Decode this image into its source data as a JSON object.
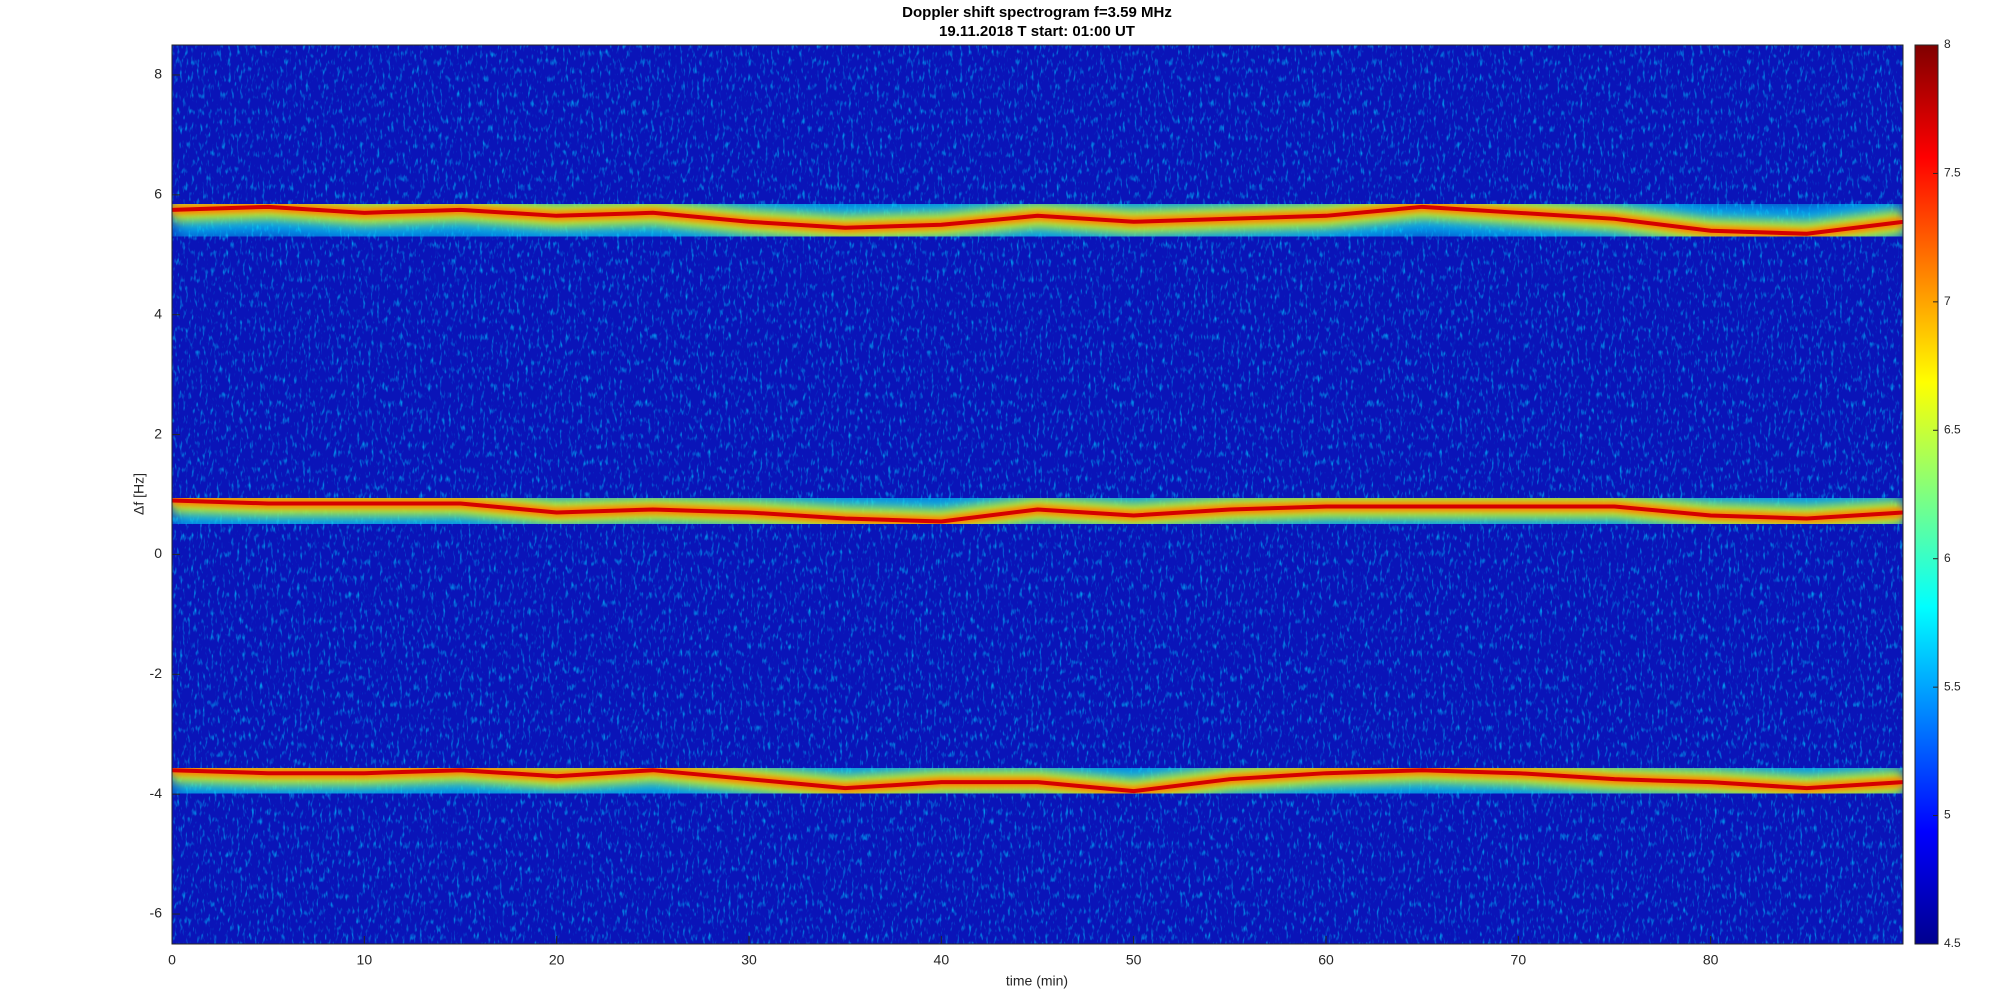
{
  "chart_data": {
    "type": "spectrogram",
    "title": "Doppler shift spectrogram f=3.59 MHz",
    "subtitle": "19.11.2018   T start: 01:00 UT",
    "x_label": "time (min)",
    "y_label": "Δf [Hz]",
    "x": [
      0,
      5,
      10,
      15,
      20,
      25,
      30,
      35,
      40,
      45,
      50,
      55,
      60,
      65,
      70,
      75,
      80,
      85,
      90
    ],
    "series": [
      {
        "color": "#d40000",
        "values": [
          5.75,
          5.8,
          5.7,
          5.75,
          5.65,
          5.7,
          5.55,
          5.45,
          5.5,
          5.65,
          5.55,
          5.6,
          5.65,
          5.8,
          5.7,
          5.6,
          5.4,
          5.35,
          5.55
        ]
      },
      {
        "color": "#d40000",
        "values": [
          0.9,
          0.85,
          0.85,
          0.85,
          0.7,
          0.75,
          0.7,
          0.6,
          0.55,
          0.75,
          0.65,
          0.75,
          0.8,
          0.8,
          0.8,
          0.8,
          0.65,
          0.6,
          0.7
        ]
      },
      {
        "color": "#d40000",
        "values": [
          -3.6,
          -3.65,
          -3.65,
          -3.6,
          -3.7,
          -3.6,
          -3.75,
          -3.9,
          -3.8,
          -3.8,
          -3.95,
          -3.75,
          -3.65,
          -3.6,
          -3.65,
          -3.75,
          -3.8,
          -3.9,
          -3.8
        ]
      }
    ],
    "xlim": [
      0,
      90
    ],
    "xticks": [
      0,
      10,
      20,
      30,
      40,
      50,
      60,
      70,
      80
    ],
    "ylim": [
      -6.5,
      8.5
    ],
    "yticks": [
      -6,
      -4,
      -2,
      0,
      2,
      4,
      6,
      8
    ],
    "colormap": "jet",
    "clim": [
      4.5,
      8
    ],
    "cticks": [
      4.5,
      5,
      5.5,
      6,
      6.5,
      7,
      7.5,
      8
    ]
  }
}
